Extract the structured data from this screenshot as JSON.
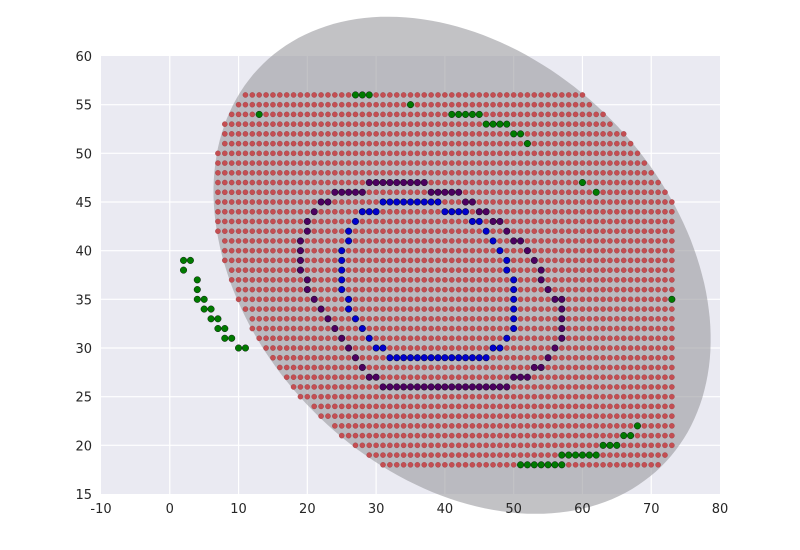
{
  "chart_data": {
    "type": "scatter",
    "title": "",
    "xlabel": "",
    "ylabel": "",
    "xlim": [
      -10,
      80
    ],
    "ylim": [
      15,
      60
    ],
    "x_ticks": [
      "-10",
      "0",
      "10",
      "20",
      "30",
      "40",
      "50",
      "60",
      "70",
      "80"
    ],
    "y_ticks": [
      "15",
      "20",
      "25",
      "30",
      "35",
      "40",
      "45",
      "50",
      "55",
      "60"
    ],
    "grid": true,
    "legend": "none",
    "ellipse": {
      "center": [
        42.5,
        38.5
      ],
      "semi_major": 37.5,
      "semi_minor": 23.5,
      "angle_deg": -20,
      "color": "#9a9a9f",
      "opacity": 0.6
    },
    "colors": {
      "background": "#eaeaf2",
      "grid": "#ffffff",
      "grid_fill": "#c44e52",
      "boundary": "#007a00",
      "inner_ring": "#0000cc",
      "outer_ring": "#4b0060"
    },
    "series": [
      {
        "color_key": "boundary",
        "points": [
          [
            27,
            56
          ],
          [
            28,
            56
          ],
          [
            29,
            56
          ],
          [
            35,
            55
          ],
          [
            13,
            54
          ],
          [
            41,
            54
          ],
          [
            42,
            54
          ],
          [
            43,
            54
          ],
          [
            44,
            54
          ],
          [
            45,
            54
          ],
          [
            46,
            53
          ],
          [
            47,
            53
          ],
          [
            48,
            53
          ],
          [
            49,
            53
          ],
          [
            50,
            52
          ],
          [
            51,
            52
          ],
          [
            52,
            51
          ],
          [
            60,
            47
          ],
          [
            62,
            46
          ],
          [
            2,
            39
          ],
          [
            3,
            39
          ],
          [
            2,
            38
          ],
          [
            4,
            37
          ],
          [
            4,
            36
          ],
          [
            4,
            35
          ],
          [
            5,
            35
          ],
          [
            73,
            35
          ],
          [
            5,
            34
          ],
          [
            6,
            34
          ],
          [
            6,
            33
          ],
          [
            7,
            33
          ],
          [
            7,
            32
          ],
          [
            8,
            32
          ],
          [
            8,
            31
          ],
          [
            9,
            31
          ],
          [
            10,
            30
          ],
          [
            11,
            30
          ],
          [
            68,
            22
          ],
          [
            66,
            21
          ],
          [
            67,
            21
          ],
          [
            63,
            20
          ],
          [
            64,
            20
          ],
          [
            65,
            20
          ],
          [
            57,
            19
          ],
          [
            58,
            19
          ],
          [
            59,
            19
          ],
          [
            60,
            19
          ],
          [
            61,
            19
          ],
          [
            62,
            19
          ],
          [
            51,
            18
          ],
          [
            52,
            18
          ],
          [
            53,
            18
          ],
          [
            54,
            18
          ],
          [
            55,
            18
          ],
          [
            56,
            18
          ],
          [
            57,
            18
          ]
        ]
      },
      {
        "color_key": "outer_ring",
        "points": [
          [
            29,
            47
          ],
          [
            30,
            47
          ],
          [
            31,
            47
          ],
          [
            32,
            47
          ],
          [
            33,
            47
          ],
          [
            34,
            47
          ],
          [
            35,
            47
          ],
          [
            36,
            47
          ],
          [
            37,
            47
          ],
          [
            24,
            46
          ],
          [
            25,
            46
          ],
          [
            26,
            46
          ],
          [
            27,
            46
          ],
          [
            28,
            46
          ],
          [
            38,
            46
          ],
          [
            39,
            46
          ],
          [
            40,
            46
          ],
          [
            41,
            46
          ],
          [
            42,
            46
          ],
          [
            22,
            45
          ],
          [
            23,
            45
          ],
          [
            43,
            45
          ],
          [
            44,
            45
          ],
          [
            21,
            44
          ],
          [
            45,
            44
          ],
          [
            46,
            44
          ],
          [
            20,
            43
          ],
          [
            47,
            43
          ],
          [
            48,
            43
          ],
          [
            20,
            42
          ],
          [
            49,
            42
          ],
          [
            19,
            41
          ],
          [
            50,
            41
          ],
          [
            51,
            41
          ],
          [
            19,
            40
          ],
          [
            52,
            40
          ],
          [
            19,
            39
          ],
          [
            53,
            39
          ],
          [
            19,
            38
          ],
          [
            54,
            38
          ],
          [
            20,
            37
          ],
          [
            54,
            37
          ],
          [
            20,
            36
          ],
          [
            55,
            36
          ],
          [
            21,
            35
          ],
          [
            56,
            35
          ],
          [
            57,
            35
          ],
          [
            22,
            34
          ],
          [
            57,
            34
          ],
          [
            23,
            33
          ],
          [
            57,
            33
          ],
          [
            24,
            32
          ],
          [
            57,
            32
          ],
          [
            25,
            31
          ],
          [
            57,
            31
          ],
          [
            26,
            30
          ],
          [
            56,
            30
          ],
          [
            27,
            29
          ],
          [
            55,
            29
          ],
          [
            28,
            28
          ],
          [
            53,
            28
          ],
          [
            54,
            28
          ],
          [
            29,
            27
          ],
          [
            30,
            27
          ],
          [
            50,
            27
          ],
          [
            51,
            27
          ],
          [
            52,
            27
          ],
          [
            31,
            26
          ],
          [
            32,
            26
          ],
          [
            33,
            26
          ],
          [
            34,
            26
          ],
          [
            35,
            26
          ],
          [
            36,
            26
          ],
          [
            37,
            26
          ],
          [
            38,
            26
          ],
          [
            39,
            26
          ],
          [
            40,
            26
          ],
          [
            41,
            26
          ],
          [
            42,
            26
          ],
          [
            43,
            26
          ],
          [
            44,
            26
          ],
          [
            45,
            26
          ],
          [
            46,
            26
          ],
          [
            47,
            26
          ],
          [
            48,
            26
          ],
          [
            49,
            26
          ]
        ]
      },
      {
        "color_key": "inner_ring",
        "points": [
          [
            31,
            45
          ],
          [
            32,
            45
          ],
          [
            33,
            45
          ],
          [
            34,
            45
          ],
          [
            35,
            45
          ],
          [
            36,
            45
          ],
          [
            37,
            45
          ],
          [
            38,
            45
          ],
          [
            39,
            45
          ],
          [
            28,
            44
          ],
          [
            29,
            44
          ],
          [
            30,
            44
          ],
          [
            40,
            44
          ],
          [
            41,
            44
          ],
          [
            42,
            44
          ],
          [
            43,
            44
          ],
          [
            27,
            43
          ],
          [
            44,
            43
          ],
          [
            45,
            43
          ],
          [
            26,
            42
          ],
          [
            46,
            42
          ],
          [
            26,
            41
          ],
          [
            47,
            41
          ],
          [
            25,
            40
          ],
          [
            48,
            40
          ],
          [
            25,
            39
          ],
          [
            49,
            39
          ],
          [
            25,
            38
          ],
          [
            49,
            38
          ],
          [
            25,
            37
          ],
          [
            50,
            37
          ],
          [
            25,
            36
          ],
          [
            50,
            36
          ],
          [
            26,
            35
          ],
          [
            50,
            35
          ],
          [
            26,
            34
          ],
          [
            50,
            34
          ],
          [
            27,
            33
          ],
          [
            50,
            33
          ],
          [
            28,
            32
          ],
          [
            50,
            32
          ],
          [
            29,
            31
          ],
          [
            49,
            31
          ],
          [
            30,
            30
          ],
          [
            31,
            30
          ],
          [
            47,
            30
          ],
          [
            48,
            30
          ],
          [
            32,
            29
          ],
          [
            33,
            29
          ],
          [
            34,
            29
          ],
          [
            35,
            29
          ],
          [
            36,
            29
          ],
          [
            37,
            29
          ],
          [
            38,
            29
          ],
          [
            39,
            29
          ],
          [
            40,
            29
          ],
          [
            41,
            29
          ],
          [
            42,
            29
          ],
          [
            43,
            29
          ],
          [
            44,
            29
          ],
          [
            45,
            29
          ],
          [
            46,
            29
          ]
        ]
      },
      {
        "color_key": "grid_fill",
        "x_range": [
          2,
          73
        ],
        "y_range": [
          18,
          56
        ],
        "rule": "every integer (x, y) inside the shaded ellipse not listed in another series",
        "points": []
      }
    ]
  }
}
